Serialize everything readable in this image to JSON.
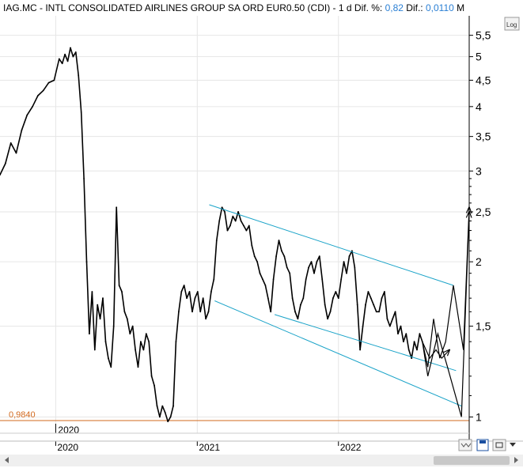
{
  "header": {
    "symbol": "IAG.MC",
    "name": "INTL CONSOLIDATED AIRLINES GROUP SA ORD EUR0.50 (CDI)",
    "period": "1 d",
    "pct_label": "Dif. %:",
    "pct_value": "0,82",
    "diff_label": "Dif.:",
    "diff_value": "0,0110",
    "mode": "M"
  },
  "toolbar": {
    "log_label": "Log"
  },
  "reference_line": {
    "label": "0,9840",
    "value": 0.984,
    "color": "#d2691e"
  },
  "colors": {
    "price": "#000000",
    "channel": "#1aa3c8",
    "projection": "#000000",
    "grid": "#e6e6e6",
    "accent": "#2a7fd4"
  },
  "chart_data": {
    "type": "line",
    "title": "IAG.MC - INTL CONSOLIDATED AIRLINES GROUP SA ORD EUR0.50 (CDI)",
    "yscale": "log",
    "ylim": [
      0.93,
      6.0
    ],
    "xlim": [
      "2019-08-10",
      "2022-12-05"
    ],
    "ytick_labels": [
      "5,5",
      "5",
      "4,5",
      "4",
      "3,5",
      "3",
      "2,5",
      "2",
      "1,5",
      "1"
    ],
    "yticks": [
      5.5,
      5,
      4.5,
      4,
      3.5,
      3,
      2.5,
      2,
      1.5,
      1
    ],
    "xtick_labels": [
      "2020",
      "2021",
      "2022"
    ],
    "xticks": [
      "2020-01-01",
      "2021-01-01",
      "2022-01-01"
    ],
    "top_axis_label": "2020",
    "grid": true,
    "series": [
      {
        "values": [
          [
            "2019-08-10",
            2.95
          ],
          [
            "2019-08-24",
            3.1
          ],
          [
            "2019-09-07",
            3.4
          ],
          [
            "2019-09-21",
            3.25
          ],
          [
            "2019-10-05",
            3.6
          ],
          [
            "2019-10-19",
            3.85
          ],
          [
            "2019-11-02",
            4.0
          ],
          [
            "2019-11-16",
            4.2
          ],
          [
            "2019-11-30",
            4.3
          ],
          [
            "2019-12-14",
            4.45
          ],
          [
            "2019-12-28",
            4.5
          ],
          [
            "2020-01-10",
            4.95
          ],
          [
            "2020-01-18",
            4.85
          ],
          [
            "2020-01-25",
            5.05
          ],
          [
            "2020-02-01",
            4.9
          ],
          [
            "2020-02-08",
            5.2
          ],
          [
            "2020-02-15",
            5.0
          ],
          [
            "2020-02-22",
            5.1
          ],
          [
            "2020-02-29",
            4.6
          ],
          [
            "2020-03-07",
            3.9
          ],
          [
            "2020-03-14",
            2.9
          ],
          [
            "2020-03-21",
            2.0
          ],
          [
            "2020-03-28",
            1.45
          ],
          [
            "2020-04-04",
            1.75
          ],
          [
            "2020-04-11",
            1.35
          ],
          [
            "2020-04-18",
            1.65
          ],
          [
            "2020-04-25",
            1.55
          ],
          [
            "2020-05-02",
            1.7
          ],
          [
            "2020-05-09",
            1.4
          ],
          [
            "2020-05-16",
            1.3
          ],
          [
            "2020-05-23",
            1.25
          ],
          [
            "2020-05-30",
            1.5
          ],
          [
            "2020-06-06",
            2.55
          ],
          [
            "2020-06-13",
            1.8
          ],
          [
            "2020-06-20",
            1.75
          ],
          [
            "2020-06-27",
            1.6
          ],
          [
            "2020-07-04",
            1.55
          ],
          [
            "2020-07-11",
            1.45
          ],
          [
            "2020-07-18",
            1.5
          ],
          [
            "2020-07-25",
            1.35
          ],
          [
            "2020-08-01",
            1.25
          ],
          [
            "2020-08-08",
            1.4
          ],
          [
            "2020-08-15",
            1.35
          ],
          [
            "2020-08-22",
            1.45
          ],
          [
            "2020-08-29",
            1.4
          ],
          [
            "2020-09-05",
            1.2
          ],
          [
            "2020-09-12",
            1.15
          ],
          [
            "2020-09-19",
            1.05
          ],
          [
            "2020-09-26",
            1.0
          ],
          [
            "2020-10-03",
            1.05
          ],
          [
            "2020-10-10",
            1.02
          ],
          [
            "2020-10-17",
            0.98
          ],
          [
            "2020-10-24",
            1.0
          ],
          [
            "2020-10-31",
            1.05
          ],
          [
            "2020-11-07",
            1.4
          ],
          [
            "2020-11-14",
            1.6
          ],
          [
            "2020-11-21",
            1.75
          ],
          [
            "2020-11-28",
            1.8
          ],
          [
            "2020-12-05",
            1.7
          ],
          [
            "2020-12-12",
            1.75
          ],
          [
            "2020-12-19",
            1.6
          ],
          [
            "2020-12-26",
            1.7
          ],
          [
            "2021-01-02",
            1.75
          ],
          [
            "2021-01-09",
            1.6
          ],
          [
            "2021-01-16",
            1.7
          ],
          [
            "2021-01-23",
            1.55
          ],
          [
            "2021-01-30",
            1.6
          ],
          [
            "2021-02-06",
            1.75
          ],
          [
            "2021-02-13",
            1.85
          ],
          [
            "2021-02-20",
            2.2
          ],
          [
            "2021-02-27",
            2.4
          ],
          [
            "2021-03-06",
            2.55
          ],
          [
            "2021-03-13",
            2.5
          ],
          [
            "2021-03-20",
            2.3
          ],
          [
            "2021-03-27",
            2.35
          ],
          [
            "2021-04-03",
            2.45
          ],
          [
            "2021-04-10",
            2.4
          ],
          [
            "2021-04-17",
            2.5
          ],
          [
            "2021-04-24",
            2.4
          ],
          [
            "2021-05-01",
            2.35
          ],
          [
            "2021-05-08",
            2.3
          ],
          [
            "2021-05-15",
            2.35
          ],
          [
            "2021-05-22",
            2.15
          ],
          [
            "2021-05-29",
            2.05
          ],
          [
            "2021-06-05",
            2.0
          ],
          [
            "2021-06-12",
            1.9
          ],
          [
            "2021-06-19",
            1.85
          ],
          [
            "2021-06-26",
            1.8
          ],
          [
            "2021-07-03",
            1.7
          ],
          [
            "2021-07-10",
            1.6
          ],
          [
            "2021-07-17",
            1.85
          ],
          [
            "2021-07-24",
            2.05
          ],
          [
            "2021-07-31",
            2.2
          ],
          [
            "2021-08-07",
            2.1
          ],
          [
            "2021-08-14",
            2.05
          ],
          [
            "2021-08-21",
            1.95
          ],
          [
            "2021-08-28",
            1.9
          ],
          [
            "2021-09-04",
            1.7
          ],
          [
            "2021-09-11",
            1.6
          ],
          [
            "2021-09-18",
            1.55
          ],
          [
            "2021-09-25",
            1.65
          ],
          [
            "2021-10-02",
            1.7
          ],
          [
            "2021-10-09",
            1.85
          ],
          [
            "2021-10-16",
            1.95
          ],
          [
            "2021-10-23",
            2.0
          ],
          [
            "2021-10-30",
            1.9
          ],
          [
            "2021-11-06",
            2.0
          ],
          [
            "2021-11-13",
            2.05
          ],
          [
            "2021-11-20",
            1.85
          ],
          [
            "2021-11-27",
            1.65
          ],
          [
            "2021-12-04",
            1.55
          ],
          [
            "2021-12-11",
            1.6
          ],
          [
            "2021-12-18",
            1.7
          ],
          [
            "2021-12-25",
            1.75
          ],
          [
            "2022-01-01",
            1.7
          ],
          [
            "2022-01-08",
            1.85
          ],
          [
            "2022-01-15",
            2.0
          ],
          [
            "2022-01-22",
            1.9
          ],
          [
            "2022-01-29",
            2.05
          ],
          [
            "2022-02-05",
            2.1
          ],
          [
            "2022-02-12",
            1.95
          ],
          [
            "2022-02-19",
            1.65
          ],
          [
            "2022-02-26",
            1.35
          ],
          [
            "2022-03-05",
            1.5
          ],
          [
            "2022-03-12",
            1.65
          ],
          [
            "2022-03-19",
            1.75
          ],
          [
            "2022-03-26",
            1.7
          ],
          [
            "2022-04-02",
            1.65
          ],
          [
            "2022-04-09",
            1.6
          ],
          [
            "2022-04-16",
            1.6
          ],
          [
            "2022-04-23",
            1.7
          ],
          [
            "2022-04-30",
            1.75
          ],
          [
            "2022-05-07",
            1.55
          ],
          [
            "2022-05-14",
            1.5
          ],
          [
            "2022-05-21",
            1.55
          ],
          [
            "2022-05-28",
            1.6
          ],
          [
            "2022-06-04",
            1.45
          ],
          [
            "2022-06-11",
            1.5
          ],
          [
            "2022-06-18",
            1.4
          ],
          [
            "2022-06-25",
            1.45
          ],
          [
            "2022-07-02",
            1.35
          ],
          [
            "2022-07-09",
            1.3
          ],
          [
            "2022-07-16",
            1.4
          ],
          [
            "2022-07-23",
            1.35
          ],
          [
            "2022-07-30",
            1.45
          ],
          [
            "2022-08-06",
            1.4
          ]
        ]
      }
    ],
    "annotations": {
      "channel_lines": [
        {
          "from": [
            "2021-02-01",
            2.58
          ],
          "to": [
            "2022-10-25",
            1.8
          ]
        },
        {
          "from": [
            "2021-02-15",
            1.68
          ],
          "to": [
            "2022-11-15",
            1.05
          ]
        },
        {
          "from": [
            "2021-07-20",
            1.58
          ],
          "to": [
            "2022-11-01",
            1.23
          ]
        }
      ],
      "projection_paths": [
        [
          [
            "2022-08-06",
            1.4
          ],
          [
            "2022-08-20",
            1.25
          ],
          [
            "2022-09-04",
            1.55
          ],
          [
            "2022-09-20",
            1.3
          ],
          [
            "2022-10-05",
            1.4
          ],
          [
            "2022-10-25",
            1.8
          ],
          [
            "2022-11-20",
            1.35
          ],
          [
            "2022-12-05",
            2.55
          ]
        ],
        [
          [
            "2022-08-06",
            1.4
          ],
          [
            "2022-08-20",
            1.2
          ],
          [
            "2022-09-15",
            1.45
          ],
          [
            "2022-10-10",
            1.25
          ],
          [
            "2022-11-15",
            1.0
          ],
          [
            "2022-12-05",
            2.5
          ]
        ],
        [
          [
            "2022-08-06",
            1.4
          ],
          [
            "2022-08-25",
            1.3
          ],
          [
            "2022-09-10",
            1.35
          ],
          [
            "2022-09-25",
            1.3
          ],
          [
            "2022-10-15",
            1.35
          ]
        ]
      ]
    }
  }
}
